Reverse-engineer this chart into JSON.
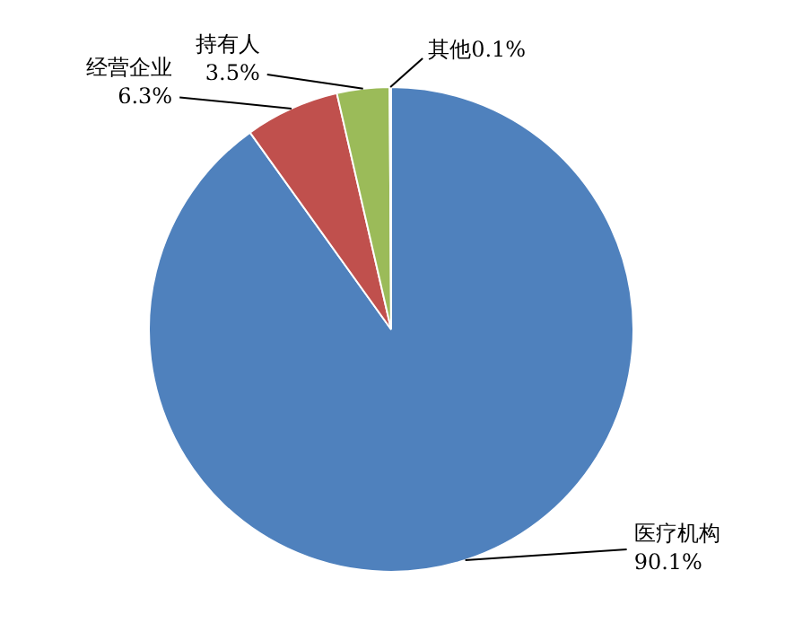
{
  "chart_data": {
    "type": "pie",
    "categories": [
      "医疗机构",
      "经营企业",
      "持有人",
      "其他"
    ],
    "values": [
      90.1,
      6.3,
      3.5,
      0.1
    ],
    "colors": [
      "#4f81bd",
      "#c0504d",
      "#9bbb59",
      "#8064a2"
    ],
    "value_labels": [
      "90.1%",
      "6.3%",
      "3.5%",
      "0.1%"
    ],
    "legend": false
  }
}
